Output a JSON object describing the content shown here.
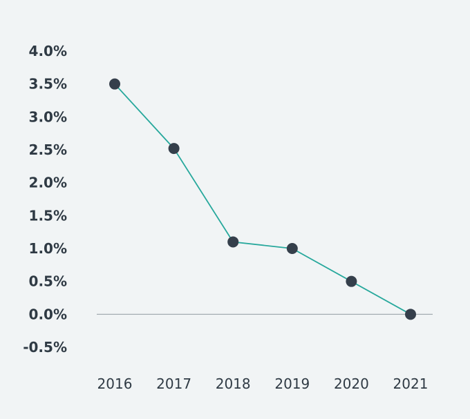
{
  "chart_data": {
    "type": "line",
    "title": "",
    "xlabel": "",
    "ylabel": "",
    "x": [
      "2016",
      "2017",
      "2018",
      "2019",
      "2020",
      "2021"
    ],
    "series": [
      {
        "values": [
          3.5,
          2.52,
          1.1,
          1.0,
          0.5,
          0.0
        ]
      }
    ],
    "ylim": [
      -0.5,
      4.0
    ],
    "ytick_values": [
      4.0,
      3.5,
      3.0,
      2.5,
      2.0,
      1.5,
      1.0,
      0.5,
      0.0,
      -0.5
    ],
    "ytick_labels": [
      "4.0%",
      "3.5%",
      "3.0%",
      "2.5%",
      "2.0%",
      "1.5%",
      "1.0%",
      "0.5%",
      "0.0%",
      "-0.5%"
    ],
    "grid": false,
    "zero_line": true,
    "legend": "none",
    "colors": {
      "background": "#f1f4f5",
      "line": "#27a89c",
      "marker_fill": "#353f4b",
      "zero_line": "#9aa3a8",
      "text": "#2f3a44"
    }
  }
}
